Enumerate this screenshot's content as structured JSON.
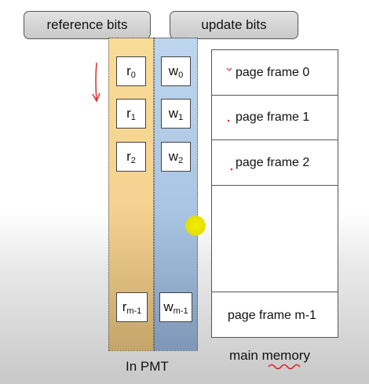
{
  "callouts": {
    "reference": "reference bits",
    "update": "update bits"
  },
  "reference_bits": [
    {
      "base": "r",
      "sub": "0"
    },
    {
      "base": "r",
      "sub": "1"
    },
    {
      "base": "r",
      "sub": "2"
    },
    {
      "base": "r",
      "sub": "m-1"
    }
  ],
  "update_bits": [
    {
      "base": "w",
      "sub": "0"
    },
    {
      "base": "w",
      "sub": "1"
    },
    {
      "base": "w",
      "sub": "2"
    },
    {
      "base": "w",
      "sub": "m-1"
    }
  ],
  "memory": {
    "frames": [
      "page frame 0",
      "page frame 1",
      "page frame 2",
      "page frame m-1"
    ]
  },
  "captions": {
    "pmt": "In PMT",
    "memory": "main memory"
  }
}
